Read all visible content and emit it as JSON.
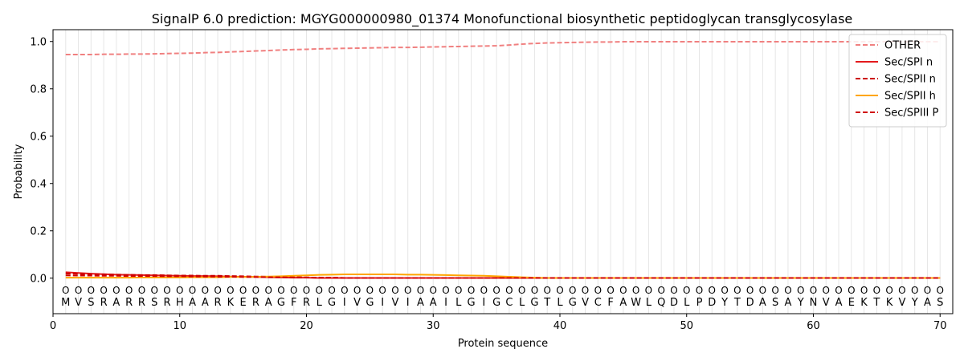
{
  "chart_data": {
    "type": "line",
    "title": "SignalP 6.0 prediction: MGYG000000980_01374 Monofunctional biosynthetic peptidoglycan transglycosylase",
    "xlabel": "Protein sequence",
    "ylabel": "Probability",
    "xlim": [
      0,
      71
    ],
    "ylim": [
      -0.15,
      1.05
    ],
    "xticks": [
      0,
      10,
      20,
      30,
      40,
      50,
      60,
      70
    ],
    "yticks": [
      0.0,
      0.2,
      0.4,
      0.6,
      0.8,
      1.0
    ],
    "ytick_labels": [
      "0.0",
      "0.2",
      "0.4",
      "0.6",
      "0.8",
      "1.0"
    ],
    "grid": "vertical lines at each residue",
    "legend_position": "top-right",
    "sequence": [
      "M",
      "V",
      "S",
      "R",
      "A",
      "R",
      "R",
      "S",
      "R",
      "H",
      "A",
      "A",
      "R",
      "K",
      "E",
      "R",
      "A",
      "G",
      "F",
      "R",
      "L",
      "G",
      "I",
      "V",
      "G",
      "I",
      "V",
      "I",
      "A",
      "A",
      "I",
      "L",
      "G",
      "I",
      "G",
      "C",
      "L",
      "G",
      "T",
      "L",
      "G",
      "V",
      "C",
      "F",
      "A",
      "W",
      "L",
      "Q",
      "D",
      "L",
      "P",
      "D",
      "Y",
      "T",
      "D",
      "A",
      "S",
      "A",
      "Y",
      "N",
      "V",
      "A",
      "E",
      "K",
      "T",
      "K",
      "V",
      "Y",
      "A",
      "S"
    ],
    "region_marker": "O",
    "series": [
      {
        "name": "OTHER",
        "color": "#f08080",
        "dash": "dashed",
        "values": [
          0.945,
          0.945,
          0.945,
          0.946,
          0.946,
          0.947,
          0.947,
          0.948,
          0.949,
          0.95,
          0.951,
          0.953,
          0.954,
          0.956,
          0.958,
          0.96,
          0.962,
          0.964,
          0.966,
          0.967,
          0.969,
          0.97,
          0.971,
          0.972,
          0.973,
          0.974,
          0.975,
          0.975,
          0.976,
          0.977,
          0.978,
          0.979,
          0.98,
          0.981,
          0.982,
          0.985,
          0.989,
          0.992,
          0.994,
          0.995,
          0.996,
          0.997,
          0.998,
          0.998,
          0.999,
          0.999,
          0.999,
          0.999,
          0.999,
          0.999,
          0.999,
          0.999,
          0.999,
          0.999,
          0.999,
          0.999,
          0.999,
          0.999,
          0.999,
          0.999,
          0.999,
          0.999,
          0.999,
          0.999,
          0.999,
          0.999,
          0.999,
          0.999,
          0.999,
          0.999
        ]
      },
      {
        "name": "Sec/SPI n",
        "color": "#e41a1c",
        "dash": "solid",
        "values": [
          0.025,
          0.022,
          0.019,
          0.017,
          0.015,
          0.014,
          0.013,
          0.012,
          0.011,
          0.01,
          0.009,
          0.009,
          0.008,
          0.007,
          0.006,
          0.005,
          0.004,
          0.003,
          0.002,
          0.002,
          0.001,
          0.001,
          0.001,
          0.001,
          0.001,
          0.001,
          0.001,
          0.001,
          0.001,
          0.001,
          0.001,
          0.001,
          0.001,
          0.001,
          0.001,
          0.001,
          0.001,
          0.001,
          0.001,
          0.001,
          0.001,
          0.001,
          0.001,
          0.001,
          0.001,
          0.001,
          0.001,
          0.001,
          0.001,
          0.001,
          0.001,
          0.001,
          0.001,
          0.001,
          0.001,
          0.001,
          0.001,
          0.001,
          0.001,
          0.001,
          0.001,
          0.001,
          0.001,
          0.001,
          0.001,
          0.001,
          0.001,
          0.001,
          0.001,
          0.001
        ]
      },
      {
        "name": "Sec/SPII n",
        "color": "#cc0000",
        "dash": "dashed",
        "values": [
          0.02,
          0.018,
          0.017,
          0.016,
          0.015,
          0.014,
          0.013,
          0.013,
          0.012,
          0.011,
          0.011,
          0.01,
          0.01,
          0.009,
          0.008,
          0.007,
          0.006,
          0.005,
          0.004,
          0.003,
          0.002,
          0.002,
          0.001,
          0.001,
          0.001,
          0.001,
          0.001,
          0.001,
          0.001,
          0.001,
          0.001,
          0.001,
          0.001,
          0.001,
          0.001,
          0.001,
          0.001,
          0.001,
          0.001,
          0.001,
          0.001,
          0.001,
          0.001,
          0.001,
          0.001,
          0.001,
          0.001,
          0.001,
          0.001,
          0.001,
          0.001,
          0.001,
          0.001,
          0.001,
          0.001,
          0.001,
          0.001,
          0.001,
          0.001,
          0.001,
          0.001,
          0.001,
          0.001,
          0.001,
          0.001,
          0.001,
          0.001,
          0.001,
          0.001,
          0.001
        ]
      },
      {
        "name": "Sec/SPII h",
        "color": "#ffa500",
        "dash": "solid",
        "values": [
          0.002,
          0.002,
          0.002,
          0.002,
          0.002,
          0.002,
          0.003,
          0.003,
          0.003,
          0.003,
          0.004,
          0.004,
          0.004,
          0.005,
          0.005,
          0.006,
          0.007,
          0.008,
          0.01,
          0.012,
          0.014,
          0.015,
          0.016,
          0.016,
          0.016,
          0.016,
          0.016,
          0.015,
          0.015,
          0.014,
          0.013,
          0.012,
          0.011,
          0.01,
          0.008,
          0.006,
          0.004,
          0.002,
          0.001,
          0.001,
          0.001,
          0.001,
          0.001,
          0.001,
          0.001,
          0.001,
          0.001,
          0.001,
          0.001,
          0.001,
          0.001,
          0.001,
          0.001,
          0.001,
          0.001,
          0.001,
          0.001,
          0.001,
          0.001,
          0.001,
          0.001,
          0.001,
          0.001,
          0.001,
          0.001,
          0.001,
          0.001,
          0.001,
          0.001,
          0.001
        ]
      },
      {
        "name": "Sec/SPIII P",
        "color": "#d00000",
        "dash": "dashed",
        "values": [
          0.012,
          0.011,
          0.011,
          0.01,
          0.01,
          0.009,
          0.009,
          0.009,
          0.008,
          0.008,
          0.007,
          0.007,
          0.006,
          0.006,
          0.005,
          0.005,
          0.004,
          0.004,
          0.003,
          0.003,
          0.002,
          0.002,
          0.001,
          0.001,
          0.001,
          0.001,
          0.001,
          0.001,
          0.001,
          0.001,
          0.001,
          0.001,
          0.001,
          0.001,
          0.001,
          0.001,
          0.001,
          0.001,
          0.001,
          0.001,
          0.001,
          0.001,
          0.001,
          0.001,
          0.001,
          0.001,
          0.001,
          0.001,
          0.001,
          0.001,
          0.001,
          0.001,
          0.001,
          0.001,
          0.001,
          0.001,
          0.001,
          0.001,
          0.001,
          0.001,
          0.001,
          0.001,
          0.001,
          0.001,
          0.001,
          0.001,
          0.001,
          0.001,
          0.001,
          0.001
        ]
      }
    ]
  }
}
